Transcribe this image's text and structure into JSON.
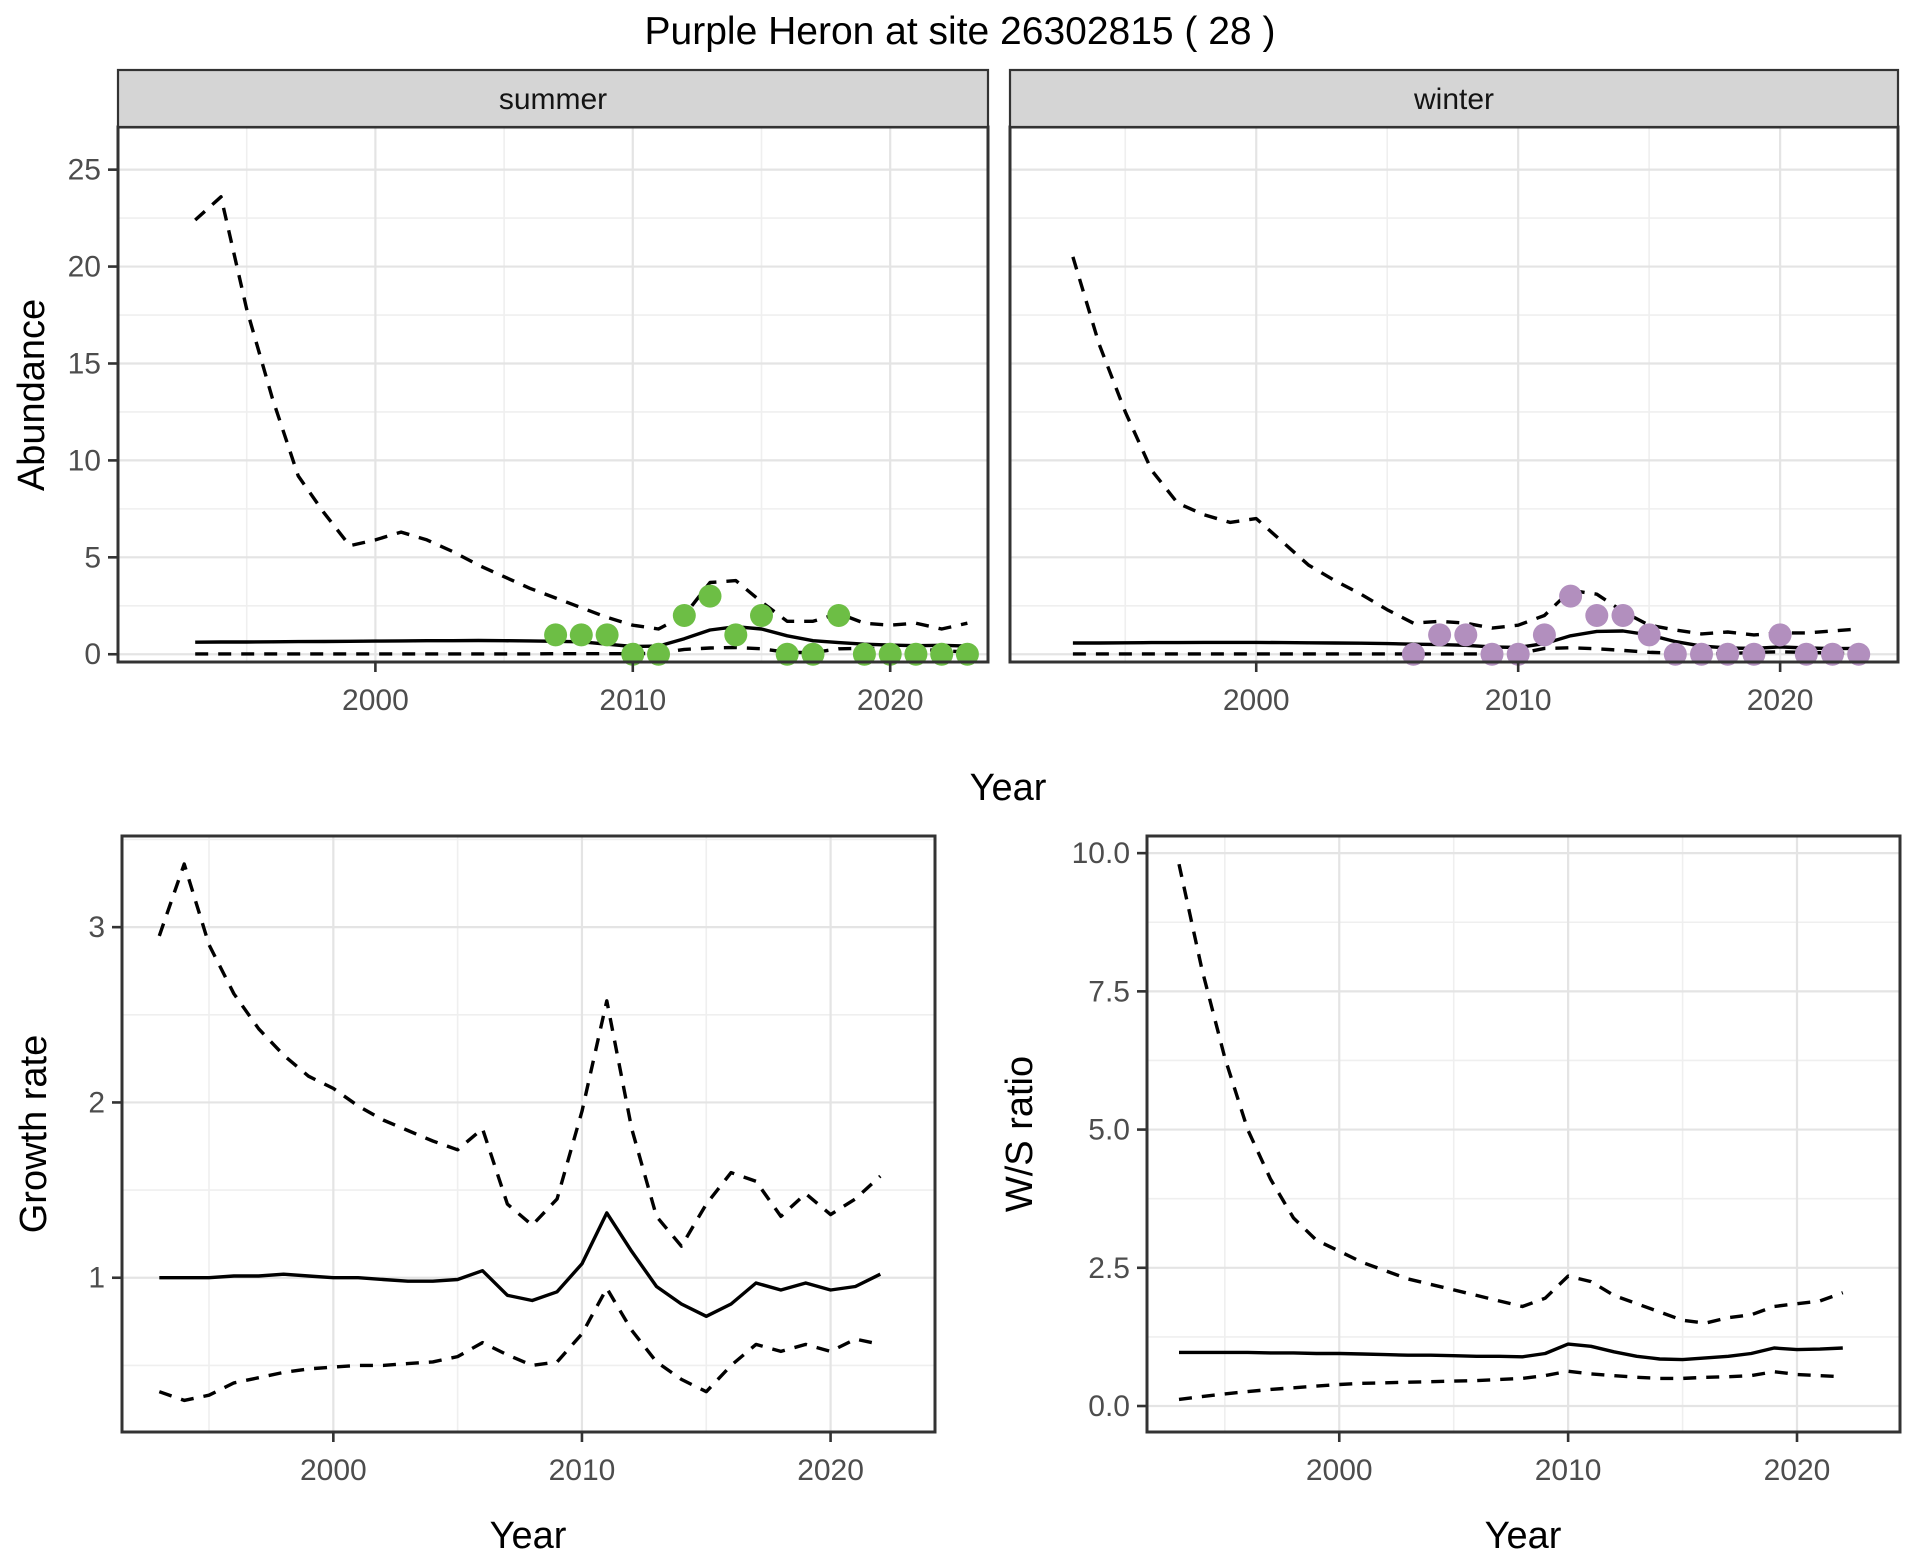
{
  "title": "Purple Heron at site 26302815 ( 28 )",
  "axis_titles": {
    "x": "Year",
    "abundance": "Abundance",
    "growth": "Growth rate",
    "ws": "W/S ratio"
  },
  "facets": {
    "summer": "summer",
    "winter": "winter"
  },
  "colors": {
    "summer_point": "#6DBE45",
    "winter_point": "#B28FBE",
    "line": "#000000",
    "grid_major": "#e4e4e4",
    "grid_minor": "#efefef",
    "panel_border": "#333333",
    "tick_mark": "#333333",
    "strip_bg": "#d5d5d5",
    "tick_text": "#4d4d4d"
  },
  "chart_data": [
    {
      "id": "abundance-summer",
      "type": "line",
      "facet": "summer",
      "title": "Abundance - summer",
      "xlabel": "Year",
      "ylabel": "Abundance",
      "x_domain": [
        1990.0,
        2023.8
      ],
      "y_domain": [
        -0.4,
        27.2
      ],
      "x_ticks": [
        2000,
        2010,
        2020
      ],
      "x_tick_labels": [
        "2000",
        "2010",
        "2020"
      ],
      "x_minor": [
        1995,
        2005,
        2015
      ],
      "y_ticks": [
        0,
        5,
        10,
        15,
        20,
        25
      ],
      "y_tick_labels": [
        "0",
        "5",
        "10",
        "15",
        "20",
        "25"
      ],
      "y_minor": [
        2.5,
        7.5,
        12.5,
        17.5,
        22.5
      ],
      "year_start": 1993,
      "series": [
        {
          "name": "upper-95ci",
          "style": "dashed",
          "values": [
            22.4,
            23.6,
            17.8,
            13.2,
            9.2,
            7.3,
            5.6,
            5.9,
            6.3,
            5.9,
            5.3,
            4.6,
            4.0,
            3.4,
            2.9,
            2.4,
            1.9,
            1.5,
            1.3,
            2.0,
            3.7,
            3.8,
            2.7,
            1.7,
            1.7,
            2.1,
            1.6,
            1.5,
            1.6,
            1.3,
            1.6
          ]
        },
        {
          "name": "mean",
          "style": "solid",
          "values": [
            0.62,
            0.63,
            0.63,
            0.64,
            0.65,
            0.66,
            0.67,
            0.68,
            0.69,
            0.7,
            0.7,
            0.71,
            0.7,
            0.69,
            0.67,
            0.64,
            0.52,
            0.4,
            0.42,
            0.8,
            1.25,
            1.42,
            1.3,
            0.95,
            0.7,
            0.6,
            0.52,
            0.47,
            0.44,
            0.46,
            0.42
          ]
        },
        {
          "name": "lower-95ci",
          "style": "dashed",
          "values": [
            0.02,
            0.02,
            0.02,
            0.02,
            0.02,
            0.02,
            0.02,
            0.02,
            0.02,
            0.02,
            0.02,
            0.02,
            0.02,
            0.02,
            0.03,
            0.03,
            0.03,
            0.03,
            0.05,
            0.25,
            0.32,
            0.35,
            0.28,
            0.1,
            0.08,
            0.28,
            0.3,
            0.3,
            0.28,
            0.18,
            0.12
          ]
        }
      ],
      "points": {
        "name": "observed-counts-summer",
        "color_key": "summer_point",
        "years": [
          2007,
          2008,
          2009,
          2010,
          2011,
          2012,
          2013,
          2014,
          2015,
          2016,
          2017,
          2018,
          2019,
          2020,
          2021,
          2022,
          2023
        ],
        "values": [
          1,
          1,
          1,
          0,
          0,
          2,
          3,
          1,
          2,
          0,
          0,
          2,
          0,
          0,
          0,
          0,
          0
        ]
      }
    },
    {
      "id": "abundance-winter",
      "type": "line",
      "facet": "winter",
      "title": "Abundance - winter",
      "xlabel": "Year",
      "ylabel": "Abundance",
      "x_domain": [
        1990.6,
        2024.5
      ],
      "y_domain": [
        -0.4,
        27.2
      ],
      "x_ticks": [
        2000,
        2010,
        2020
      ],
      "x_tick_labels": [
        "2000",
        "2010",
        "2020"
      ],
      "x_minor": [
        1995,
        2005,
        2015
      ],
      "y_ticks": [
        0,
        5,
        10,
        15,
        20,
        25
      ],
      "y_tick_labels": [
        "0",
        "5",
        "10",
        "15",
        "20",
        "25"
      ],
      "y_minor": [
        2.5,
        7.5,
        12.5,
        17.5,
        22.5
      ],
      "year_start": 1993,
      "series": [
        {
          "name": "upper-95ci",
          "style": "dashed",
          "values": [
            20.5,
            16.0,
            12.5,
            9.5,
            7.8,
            7.2,
            6.8,
            7.0,
            5.8,
            4.6,
            3.8,
            3.1,
            2.3,
            1.6,
            1.7,
            1.6,
            1.35,
            1.5,
            2.0,
            3.3,
            3.1,
            2.2,
            1.5,
            1.25,
            1.05,
            1.15,
            1.0,
            1.1,
            1.1,
            1.2,
            1.3
          ]
        },
        {
          "name": "mean",
          "style": "solid",
          "values": [
            0.58,
            0.58,
            0.59,
            0.6,
            0.6,
            0.61,
            0.61,
            0.61,
            0.6,
            0.59,
            0.58,
            0.57,
            0.55,
            0.52,
            0.5,
            0.46,
            0.38,
            0.35,
            0.55,
            0.95,
            1.18,
            1.2,
            1.0,
            0.65,
            0.42,
            0.32,
            0.3,
            0.38,
            0.32,
            0.29,
            0.3
          ]
        },
        {
          "name": "lower-95ci",
          "style": "dashed",
          "values": [
            0.02,
            0.02,
            0.02,
            0.02,
            0.02,
            0.02,
            0.02,
            0.02,
            0.02,
            0.02,
            0.02,
            0.02,
            0.02,
            0.02,
            0.02,
            0.02,
            0.02,
            0.03,
            0.3,
            0.33,
            0.28,
            0.2,
            0.1,
            0.05,
            0.03,
            0.03,
            0.1,
            0.12,
            0.1,
            0.06,
            0.05
          ]
        }
      ],
      "points": {
        "name": "observed-counts-winter",
        "color_key": "winter_point",
        "years": [
          2006,
          2007,
          2008,
          2009,
          2010,
          2011,
          2012,
          2013,
          2014,
          2015,
          2016,
          2017,
          2018,
          2019,
          2020,
          2021,
          2022,
          2023
        ],
        "values": [
          0,
          1,
          1,
          0,
          0,
          1,
          3,
          2,
          2,
          1,
          0,
          0,
          0,
          0,
          1,
          0,
          0,
          0
        ]
      }
    },
    {
      "id": "growth-rate",
      "type": "line",
      "title": "Growth rate",
      "xlabel": "Year",
      "ylabel": "Growth rate",
      "x_domain": [
        1991.5,
        2024.2
      ],
      "y_domain": [
        0.12,
        3.52
      ],
      "x_ticks": [
        2000,
        2010,
        2020
      ],
      "x_tick_labels": [
        "2000",
        "2010",
        "2020"
      ],
      "x_minor": [
        1995,
        2005,
        2015
      ],
      "y_ticks": [
        1,
        2,
        3
      ],
      "y_tick_labels": [
        "1",
        "2",
        "3"
      ],
      "y_minor": [
        0.5,
        1.5,
        2.5,
        3.5
      ],
      "year_start": 1993,
      "series": [
        {
          "name": "upper-95ci",
          "style": "dashed",
          "values": [
            2.95,
            3.36,
            2.9,
            2.62,
            2.42,
            2.27,
            2.15,
            2.08,
            1.98,
            1.9,
            1.84,
            1.78,
            1.73,
            1.85,
            1.42,
            1.3,
            1.45,
            1.95,
            2.58,
            1.85,
            1.35,
            1.18,
            1.42,
            1.6,
            1.55,
            1.35,
            1.48,
            1.36,
            1.45,
            1.58
          ]
        },
        {
          "name": "mean",
          "style": "solid",
          "values": [
            1.0,
            1.0,
            1.0,
            1.01,
            1.01,
            1.02,
            1.01,
            1.0,
            1.0,
            0.99,
            0.98,
            0.98,
            0.99,
            1.04,
            0.9,
            0.87,
            0.92,
            1.08,
            1.37,
            1.15,
            0.95,
            0.85,
            0.78,
            0.85,
            0.97,
            0.93,
            0.97,
            0.93,
            0.95,
            1.02
          ]
        },
        {
          "name": "lower-95ci",
          "style": "dashed",
          "values": [
            0.35,
            0.3,
            0.33,
            0.4,
            0.43,
            0.46,
            0.48,
            0.49,
            0.5,
            0.5,
            0.51,
            0.52,
            0.55,
            0.63,
            0.56,
            0.5,
            0.52,
            0.68,
            0.94,
            0.7,
            0.52,
            0.42,
            0.35,
            0.5,
            0.62,
            0.58,
            0.62,
            0.58,
            0.65,
            0.62
          ]
        }
      ]
    },
    {
      "id": "ws-ratio",
      "type": "line",
      "title": "W/S ratio",
      "xlabel": "Year",
      "ylabel": "W/S ratio",
      "x_domain": [
        1991.6,
        2024.5
      ],
      "y_domain": [
        -0.47,
        10.31
      ],
      "x_ticks": [
        2000,
        2010,
        2020
      ],
      "x_tick_labels": [
        "2000",
        "2010",
        "2020"
      ],
      "x_minor": [
        1995,
        2005,
        2015
      ],
      "y_ticks": [
        0,
        2.5,
        5,
        7.5,
        10
      ],
      "y_tick_labels": [
        "0.0",
        "2.5",
        "5.0",
        "7.5",
        "10.0"
      ],
      "y_minor": [
        1.25,
        3.75,
        6.25,
        8.75
      ],
      "year_start": 1993,
      "series": [
        {
          "name": "upper-95ci",
          "style": "dashed",
          "values": [
            9.8,
            7.9,
            6.3,
            5.0,
            4.1,
            3.4,
            3.0,
            2.8,
            2.6,
            2.45,
            2.3,
            2.2,
            2.1,
            2.0,
            1.9,
            1.8,
            1.95,
            2.35,
            2.25,
            2.0,
            1.85,
            1.7,
            1.55,
            1.5,
            1.6,
            1.65,
            1.8,
            1.85,
            1.9,
            2.05
          ]
        },
        {
          "name": "mean",
          "style": "solid",
          "values": [
            0.97,
            0.97,
            0.97,
            0.97,
            0.96,
            0.96,
            0.95,
            0.95,
            0.94,
            0.93,
            0.92,
            0.92,
            0.91,
            0.9,
            0.9,
            0.89,
            0.95,
            1.12,
            1.08,
            0.98,
            0.9,
            0.85,
            0.84,
            0.87,
            0.9,
            0.95,
            1.05,
            1.02,
            1.03,
            1.05
          ]
        },
        {
          "name": "lower-95ci",
          "style": "dashed",
          "values": [
            0.12,
            0.17,
            0.22,
            0.26,
            0.3,
            0.33,
            0.36,
            0.39,
            0.41,
            0.42,
            0.43,
            0.44,
            0.45,
            0.46,
            0.48,
            0.5,
            0.55,
            0.63,
            0.58,
            0.55,
            0.52,
            0.5,
            0.5,
            0.52,
            0.53,
            0.55,
            0.62,
            0.57,
            0.55,
            0.53
          ]
        }
      ]
    }
  ]
}
